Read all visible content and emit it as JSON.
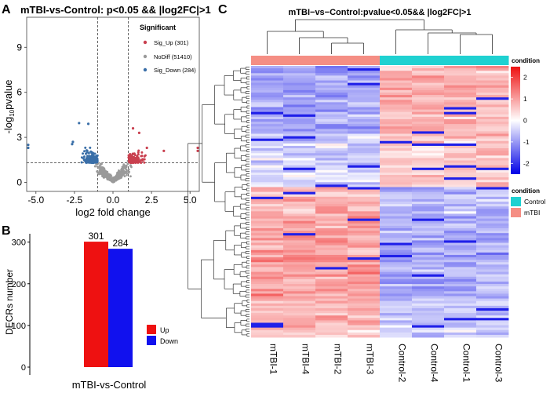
{
  "panels": {
    "a": {
      "letter": "A",
      "title": "mTBI-vs-Control: p<0.05 && |log2FC|>1",
      "xlabel": "log2 fold change",
      "ylabel_prefix": "-log",
      "ylabel_sub": "10",
      "ylabel_suffix": "pvalue",
      "legend_title": "Significant",
      "legend": [
        {
          "label": "Sig_Up (301)",
          "color": "#c9404f"
        },
        {
          "label": "NoDiff (51410)",
          "color": "#9a9a9a"
        },
        {
          "label": "Sig_Down (284)",
          "color": "#3a6fa8"
        }
      ]
    },
    "b": {
      "letter": "B",
      "ylabel": "DECRs number",
      "legend": [
        {
          "label": "Up",
          "color": "#ee1111"
        },
        {
          "label": "Down",
          "color": "#1111ee"
        }
      ]
    },
    "c": {
      "letter": "C",
      "title": "mTBI−vs−Control:pvalue<0.05&& |log2FC|>1",
      "legend_title_1": "condition",
      "legend_title_2": "condition",
      "legend_groups": [
        {
          "label": "Control",
          "color": "#1fd1d1"
        },
        {
          "label": "mTBI",
          "color": "#f58e84"
        }
      ]
    }
  },
  "chart_data": [
    {
      "type": "scatter",
      "title": "mTBI-vs-Control: p<0.05 && |log2FC|>1",
      "xlabel": "log2 fold change",
      "ylabel": "-log10 pvalue",
      "x_ticks": [
        "-5.0",
        "-2.5",
        "0.0",
        "2.5",
        "5.0"
      ],
      "y_ticks": [
        "0",
        "3",
        "6",
        "9"
      ],
      "xlim": [
        -5.6,
        5.6
      ],
      "ylim": [
        -0.6,
        11
      ],
      "thresholds": {
        "log2fc": [
          -1,
          1
        ],
        "neg_log10_p": 1.3
      },
      "series": [
        {
          "name": "Sig_Up",
          "count": 301,
          "color": "#c9404f"
        },
        {
          "name": "NoDiff",
          "count": 51410,
          "color": "#9a9a9a"
        },
        {
          "name": "Sig_Down",
          "count": 284,
          "color": "#3a6fa8"
        }
      ],
      "outliers": [
        {
          "x": -2.2,
          "y": 3.95,
          "group": "Sig_Down"
        },
        {
          "x": -1.6,
          "y": 3.9,
          "group": "Sig_Down"
        },
        {
          "x": -2.6,
          "y": 2.7,
          "group": "Sig_Down"
        },
        {
          "x": -2.65,
          "y": 2.55,
          "group": "Sig_Down"
        },
        {
          "x": 1.3,
          "y": 3.6,
          "group": "Sig_Up"
        },
        {
          "x": 1.7,
          "y": 3.3,
          "group": "Sig_Up"
        },
        {
          "x": 2.2,
          "y": 2.3,
          "group": "Sig_Up"
        },
        {
          "x": 3.3,
          "y": 2.1,
          "group": "Sig_Up"
        },
        {
          "x": -5.5,
          "y": 2.5,
          "group": "Sig_Down"
        },
        {
          "x": -5.5,
          "y": 2.3,
          "group": "Sig_Down"
        },
        {
          "x": 5.5,
          "y": 2.3,
          "group": "Sig_Up"
        },
        {
          "x": 5.5,
          "y": 2.1,
          "group": "Sig_Up"
        }
      ]
    },
    {
      "type": "bar",
      "categories": [
        "mTBI-vs-Control"
      ],
      "series": [
        {
          "name": "Up",
          "values": [
            301
          ],
          "color": "#ee1111"
        },
        {
          "name": "Down",
          "values": [
            284
          ],
          "color": "#1111ee"
        }
      ],
      "xlabel": "mTBI-vs-Control",
      "ylabel": "DECRs number",
      "y_ticks": [
        "0",
        "100",
        "200",
        "300"
      ],
      "ylim": [
        0,
        320
      ]
    },
    {
      "type": "heatmap",
      "title": "mTBI−vs−Control:pvalue<0.05&& |log2FC|>1",
      "columns": [
        "mTBI-1",
        "mTBI-4",
        "mTBI-2",
        "mTBI-3",
        "Control-2",
        "Control-4",
        "Control-1",
        "Control-3"
      ],
      "column_condition": [
        "mTBI",
        "mTBI",
        "mTBI",
        "mTBI",
        "Control",
        "Control",
        "Control",
        "Control"
      ],
      "colorbar": {
        "min": -2.5,
        "max": 2.5,
        "ticks": [
          "2",
          "1",
          "0",
          "-1",
          "-2"
        ],
        "colors": [
          "#0000e6",
          "#ffffff",
          "#ee1111"
        ]
      },
      "row_clusters": [
        {
          "rows": 28,
          "mtbi": -0.9,
          "control": 0.8
        },
        {
          "rows": 22,
          "mtbi": -0.4,
          "control": 0.6
        },
        {
          "rows": 12,
          "mtbi": 0.8,
          "control": -0.7
        },
        {
          "rows": 34,
          "mtbi": 1.0,
          "control": -0.8
        },
        {
          "rows": 16,
          "mtbi": 0.7,
          "control": -0.5
        }
      ]
    }
  ]
}
